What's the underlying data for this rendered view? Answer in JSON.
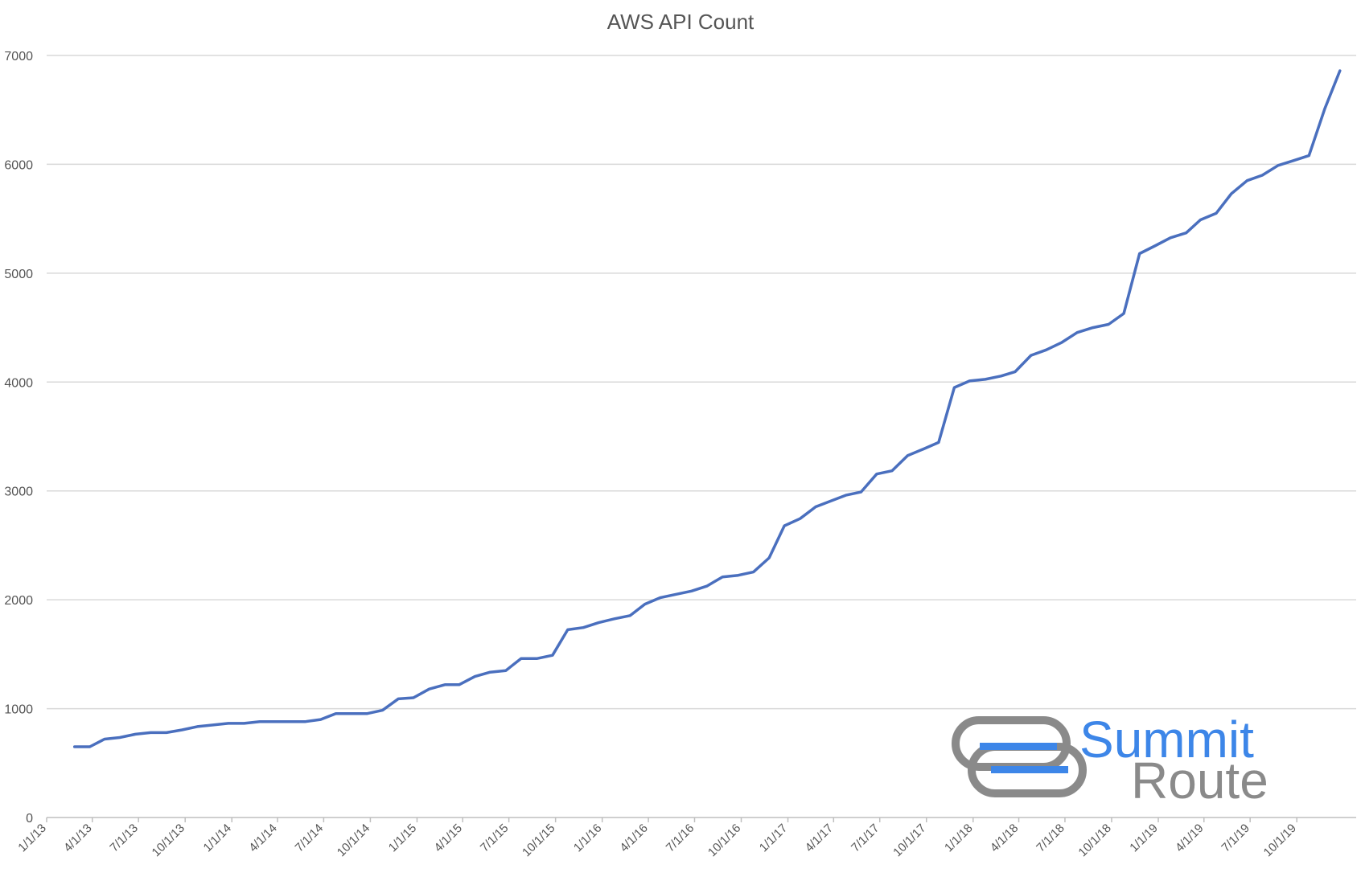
{
  "colors": {
    "line": "#4a6fbe",
    "grid": "#d9d9d9",
    "axis": "#bfbfbf",
    "text": "#555555",
    "logo_blue": "#3d86e8",
    "logo_gray": "#8a8a8a"
  },
  "logo": {
    "line1": "Summit",
    "line2": "Route"
  },
  "chart_data": {
    "type": "line",
    "title": "AWS API Count",
    "xlabel": "",
    "ylabel": "",
    "ylim": [
      0,
      7000
    ],
    "yticks": [
      0,
      1000,
      2000,
      3000,
      4000,
      5000,
      6000,
      7000
    ],
    "grid": true,
    "legend": "none",
    "x_tick_labels": [
      "1/1/13",
      "4/1/13",
      "7/1/13",
      "10/1/13",
      "1/1/14",
      "4/1/14",
      "7/1/14",
      "10/1/14",
      "1/1/15",
      "4/1/15",
      "7/1/15",
      "10/1/15",
      "1/1/16",
      "4/1/16",
      "7/1/16",
      "10/1/16",
      "1/1/17",
      "4/1/17",
      "7/1/17",
      "10/1/17",
      "1/1/18",
      "4/1/18",
      "7/1/18",
      "10/1/18",
      "1/1/19",
      "4/1/19",
      "7/1/19",
      "10/1/19"
    ],
    "series": [
      {
        "values": [
          [
            "2/25/13",
            650
          ],
          [
            "3/27/13",
            650
          ],
          [
            "4/25/13",
            720
          ],
          [
            "5/25/13",
            735
          ],
          [
            "6/25/13",
            765
          ],
          [
            "7/25/13",
            780
          ],
          [
            "8/25/13",
            780
          ],
          [
            "9/25/13",
            805
          ],
          [
            "10/25/13",
            835
          ],
          [
            "11/25/13",
            850
          ],
          [
            "12/25/13",
            865
          ],
          [
            "1/25/14",
            865
          ],
          [
            "2/25/14",
            880
          ],
          [
            "3/25/14",
            880
          ],
          [
            "4/25/14",
            880
          ],
          [
            "5/25/14",
            880
          ],
          [
            "6/25/14",
            900
          ],
          [
            "7/25/14",
            955
          ],
          [
            "8/25/14",
            955
          ],
          [
            "9/25/14",
            955
          ],
          [
            "10/25/14",
            985
          ],
          [
            "11/25/14",
            1090
          ],
          [
            "12/25/14",
            1100
          ],
          [
            "1/25/15",
            1180
          ],
          [
            "2/25/15",
            1220
          ],
          [
            "3/25/15",
            1220
          ],
          [
            "4/25/15",
            1295
          ],
          [
            "5/25/15",
            1335
          ],
          [
            "6/25/15",
            1350
          ],
          [
            "7/25/15",
            1460
          ],
          [
            "8/25/15",
            1460
          ],
          [
            "9/25/15",
            1490
          ],
          [
            "10/25/15",
            1725
          ],
          [
            "11/25/15",
            1745
          ],
          [
            "12/25/15",
            1790
          ],
          [
            "1/25/16",
            1825
          ],
          [
            "2/25/16",
            1855
          ],
          [
            "3/25/16",
            1960
          ],
          [
            "4/25/16",
            2020
          ],
          [
            "5/25/16",
            2050
          ],
          [
            "6/25/16",
            2080
          ],
          [
            "7/25/16",
            2125
          ],
          [
            "8/25/16",
            2210
          ],
          [
            "9/25/16",
            2225
          ],
          [
            "10/25/16",
            2255
          ],
          [
            "11/25/16",
            2385
          ],
          [
            "12/25/16",
            2680
          ],
          [
            "1/25/17",
            2745
          ],
          [
            "2/25/17",
            2855
          ],
          [
            "3/25/17",
            2905
          ],
          [
            "4/25/17",
            2960
          ],
          [
            "5/25/17",
            2990
          ],
          [
            "6/25/17",
            3155
          ],
          [
            "7/25/17",
            3185
          ],
          [
            "8/25/17",
            3325
          ],
          [
            "9/25/17",
            3385
          ],
          [
            "10/25/17",
            3445
          ],
          [
            "11/25/17",
            3950
          ],
          [
            "12/25/17",
            4010
          ],
          [
            "1/25/18",
            4025
          ],
          [
            "2/25/18",
            4055
          ],
          [
            "3/25/18",
            4095
          ],
          [
            "4/25/18",
            4245
          ],
          [
            "5/25/18",
            4295
          ],
          [
            "6/25/18",
            4365
          ],
          [
            "7/25/18",
            4455
          ],
          [
            "8/25/18",
            4500
          ],
          [
            "9/25/18",
            4530
          ],
          [
            "10/25/18",
            4630
          ],
          [
            "11/25/18",
            5180
          ],
          [
            "12/25/18",
            5250
          ],
          [
            "1/25/19",
            5325
          ],
          [
            "2/25/19",
            5370
          ],
          [
            "3/25/19",
            5490
          ],
          [
            "4/25/19",
            5550
          ],
          [
            "5/25/19",
            5730
          ],
          [
            "6/25/19",
            5850
          ],
          [
            "7/25/19",
            5900
          ],
          [
            "8/25/19",
            5990
          ],
          [
            "9/25/19",
            6035
          ],
          [
            "10/25/19",
            6080
          ],
          [
            "11/25/19",
            6510
          ],
          [
            "12/25/19",
            6860
          ]
        ]
      }
    ]
  }
}
